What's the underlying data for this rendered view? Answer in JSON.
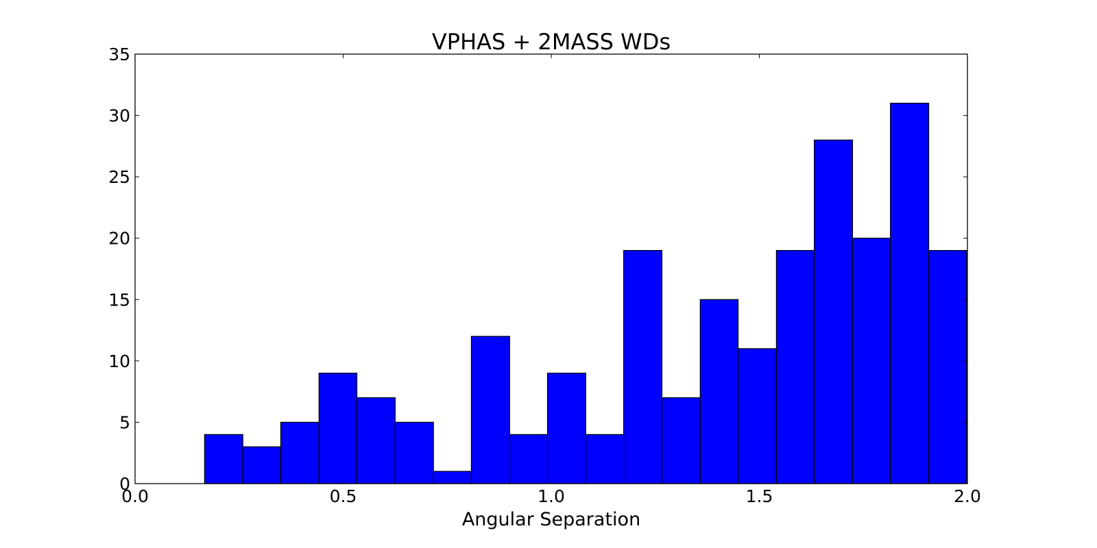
{
  "chart_data": {
    "type": "bar",
    "title": "VPHAS + 2MASS WDs",
    "xlabel": "Angular Separation",
    "ylabel": "",
    "xlim": [
      0.0,
      2.0
    ],
    "ylim": [
      0,
      35
    ],
    "x_ticks": [
      "0.0",
      "0.5",
      "1.0",
      "1.5",
      "2.0"
    ],
    "y_ticks": [
      "0",
      "5",
      "10",
      "15",
      "20",
      "25",
      "30",
      "35"
    ],
    "bin_edges": [
      0.167,
      0.259,
      0.35,
      0.442,
      0.533,
      0.625,
      0.717,
      0.808,
      0.9,
      0.991,
      1.083,
      1.174,
      1.266,
      1.358,
      1.449,
      1.541,
      1.632,
      1.724,
      1.815,
      1.907,
      1.998
    ],
    "values": [
      4,
      3,
      5,
      9,
      7,
      5,
      1,
      12,
      4,
      9,
      4,
      19,
      7,
      15,
      11,
      19,
      28,
      20,
      31,
      19
    ],
    "bar_color": "#0000ff",
    "edge_color": "#000000",
    "grid": false,
    "legend": "none"
  }
}
